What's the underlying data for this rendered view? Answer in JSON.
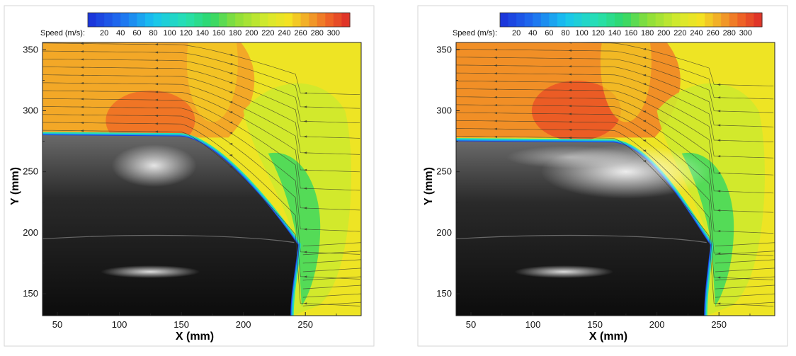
{
  "chart_data": [
    {
      "type": "heatmap",
      "title": "",
      "colorbar": {
        "label": "Speed (m/s):",
        "min": 0,
        "max": 320,
        "ticks": [
          20,
          40,
          60,
          80,
          100,
          120,
          140,
          160,
          180,
          200,
          220,
          240,
          260,
          280,
          300
        ]
      },
      "xlabel": "X (mm)",
      "ylabel": "Y (mm)",
      "xlim": [
        38,
        295
      ],
      "ylim": [
        132,
        356
      ],
      "xticks": [
        50,
        100,
        150,
        200,
        250
      ],
      "yticks": [
        150,
        200,
        250,
        300,
        350
      ],
      "streamlines": true,
      "colors": {
        "far_field": "#e8ea2a",
        "core": "#ee7a26",
        "peak": "#e9522a",
        "wake": "#86d43a",
        "boundary": "#2aa7d8",
        "wall": "#1538c8"
      },
      "zones_speed": [
        {
          "region": "upstream above nose",
          "speed": 270
        },
        {
          "region": "over shoulder",
          "speed": 290
        },
        {
          "region": "downstream of nose",
          "speed": 160
        },
        {
          "region": "far field",
          "speed": 240
        }
      ]
    },
    {
      "type": "heatmap",
      "title": "",
      "colorbar": {
        "label": "Speed (m/s):",
        "min": 0,
        "max": 320,
        "ticks": [
          20,
          40,
          60,
          80,
          100,
          120,
          140,
          160,
          180,
          200,
          220,
          240,
          260,
          280,
          300
        ]
      },
      "xlabel": "X (mm)",
      "ylabel": "Y (mm)",
      "xlim": [
        38,
        295
      ],
      "ylim": [
        132,
        356
      ],
      "xticks": [
        50,
        100,
        150,
        200,
        250
      ],
      "yticks": [
        150,
        200,
        250,
        300,
        350
      ],
      "streamlines": true,
      "colors": {
        "far_field": "#e8ea2a",
        "core": "#ee7a26",
        "peak": "#e9522a",
        "wake": "#86d43a",
        "boundary": "#2aa7d8",
        "wall": "#1538c8"
      },
      "zones_speed": [
        {
          "region": "upstream above nose",
          "speed": 280
        },
        {
          "region": "over shoulder",
          "speed": 300
        },
        {
          "region": "downstream of nose",
          "speed": 160
        },
        {
          "region": "far field",
          "speed": 240
        }
      ]
    }
  ]
}
